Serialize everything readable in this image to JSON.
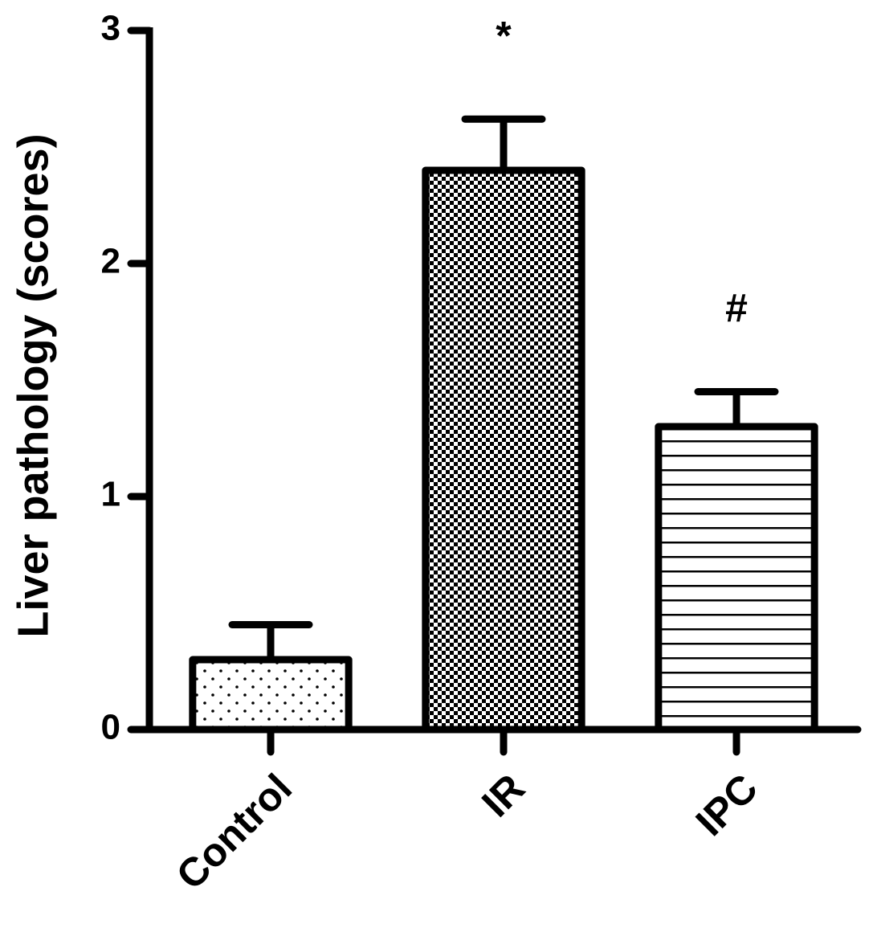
{
  "chart_data": {
    "type": "bar",
    "y_label": "Liver pathology (scores)",
    "categories": [
      "Control",
      "IR",
      "IPC"
    ],
    "values": [
      0.3,
      2.4,
      1.3
    ],
    "errors": [
      0.15,
      0.22,
      0.15
    ],
    "annotations": [
      null,
      "*",
      "#"
    ],
    "color": "#000000",
    "ylim": [
      0,
      3
    ],
    "yticks": [
      0,
      1,
      2,
      3
    ],
    "grid": false
  }
}
